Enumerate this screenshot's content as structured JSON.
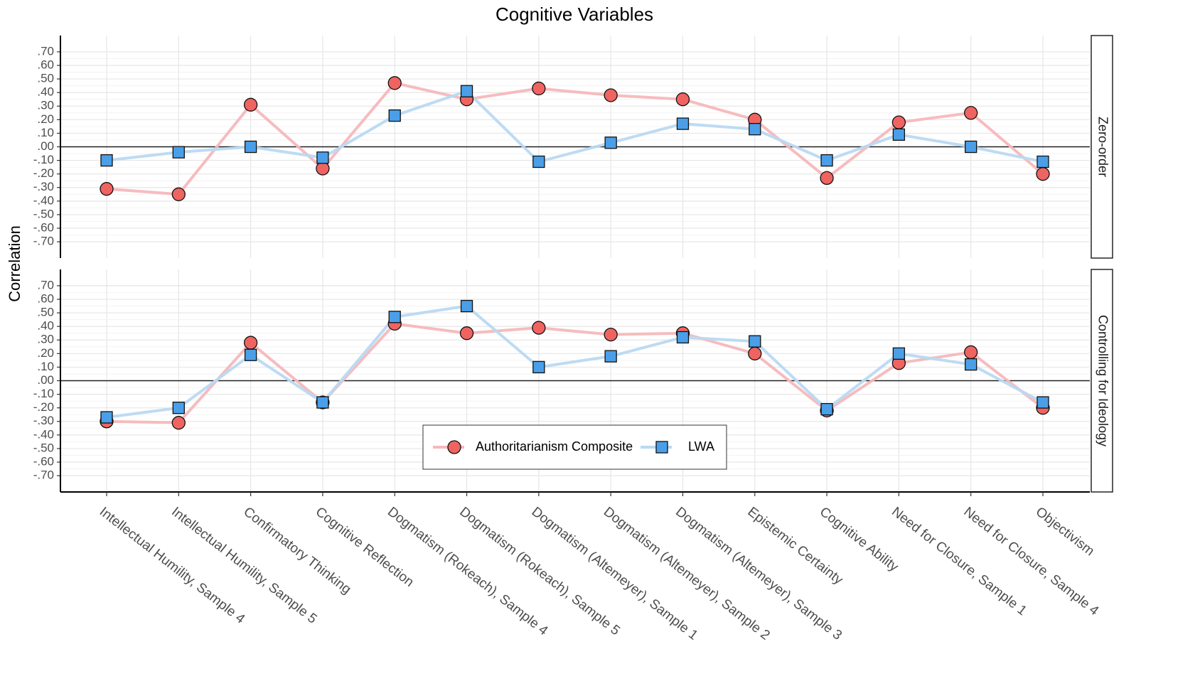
{
  "chart_data": {
    "type": "line",
    "title": "Cognitive Variables",
    "y_label": "Correlation",
    "categories": [
      "Intellectual Humility, Sample 4",
      "Intellectual Humility, Sample 5",
      "Confirmatory Thinking",
      "Cognitive Reflection",
      "Dogmatism (Rokeach), Sample 4",
      "Dogmatism (Rokeach), Sample 5",
      "Dogmatism (Altemeyer), Sample 1",
      "Dogmatism (Altemeyer), Sample 2",
      "Dogmatism (Altemeyer), Sample 3",
      "Epistemic Certainty",
      "Cognitive Ability",
      "Need for Closure, Sample 1",
      "Need for Closure, Sample 4",
      "Objectivism"
    ],
    "series": [
      {
        "name": "Authoritarianism Composite",
        "color": "#ef6461",
        "line_color": "#f5b8bc",
        "marker": "circle"
      },
      {
        "name": "LWA",
        "color": "#4a9fe8",
        "line_color": "#b9d9f2",
        "marker": "square"
      }
    ],
    "grid": true,
    "panels": [
      {
        "label": "Zero-order",
        "ylim": [
          -0.82,
          0.82
        ],
        "yticks": [
          {
            "value": 0.7,
            "label": ".70"
          },
          {
            "value": 0.6,
            "label": ".60"
          },
          {
            "value": 0.5,
            "label": ".50"
          },
          {
            "value": 0.4,
            "label": ".40"
          },
          {
            "value": 0.3,
            "label": ".30"
          },
          {
            "value": 0.2,
            "label": ".20"
          },
          {
            "value": 0.1,
            "label": ".10"
          },
          {
            "value": 0,
            "label": ".00"
          },
          {
            "value": -0.1,
            "label": "-.10"
          },
          {
            "value": -0.2,
            "label": "-.20"
          },
          {
            "value": -0.3,
            "label": "-.30"
          },
          {
            "value": -0.4,
            "label": "-.40"
          },
          {
            "value": -0.5,
            "label": "-.50"
          },
          {
            "value": -0.6,
            "label": "-.60"
          },
          {
            "value": -0.7,
            "label": "-.70"
          }
        ],
        "series": [
          {
            "values": [
              -0.31,
              -0.35,
              0.31,
              -0.16,
              0.47,
              0.35,
              0.43,
              0.38,
              0.35,
              0.2,
              -0.23,
              0.18,
              0.25,
              -0.2
            ]
          },
          {
            "values": [
              -0.1,
              -0.04,
              0.0,
              -0.08,
              0.23,
              0.41,
              -0.11,
              0.03,
              0.17,
              0.13,
              -0.1,
              0.09,
              0.0,
              -0.11
            ]
          }
        ]
      },
      {
        "label": "Controlling for Ideology",
        "ylim": [
          -0.82,
          0.82
        ],
        "yticks": [
          {
            "value": 0.7,
            "label": ".70"
          },
          {
            "value": 0.6,
            "label": ".60"
          },
          {
            "value": 0.5,
            "label": ".50"
          },
          {
            "value": 0.4,
            "label": ".40"
          },
          {
            "value": 0.3,
            "label": ".30"
          },
          {
            "value": 0.2,
            "label": ".20"
          },
          {
            "value": 0.1,
            "label": ".10"
          },
          {
            "value": 0,
            "label": ".00"
          },
          {
            "value": -0.1,
            "label": "-.10"
          },
          {
            "value": -0.2,
            "label": "-.20"
          },
          {
            "value": -0.3,
            "label": "-.30"
          },
          {
            "value": -0.4,
            "label": "-.40"
          },
          {
            "value": -0.5,
            "label": "-.50"
          },
          {
            "value": -0.6,
            "label": "-.60"
          },
          {
            "value": -0.7,
            "label": "-.70"
          }
        ],
        "series": [
          {
            "values": [
              -0.3,
              -0.31,
              0.28,
              -0.16,
              0.42,
              0.35,
              0.39,
              0.34,
              0.35,
              0.2,
              -0.22,
              0.13,
              0.21,
              -0.2
            ]
          },
          {
            "values": [
              -0.27,
              -0.2,
              0.19,
              -0.16,
              0.47,
              0.55,
              0.1,
              0.18,
              0.32,
              0.29,
              -0.21,
              0.2,
              0.12,
              -0.16
            ]
          }
        ]
      }
    ]
  }
}
